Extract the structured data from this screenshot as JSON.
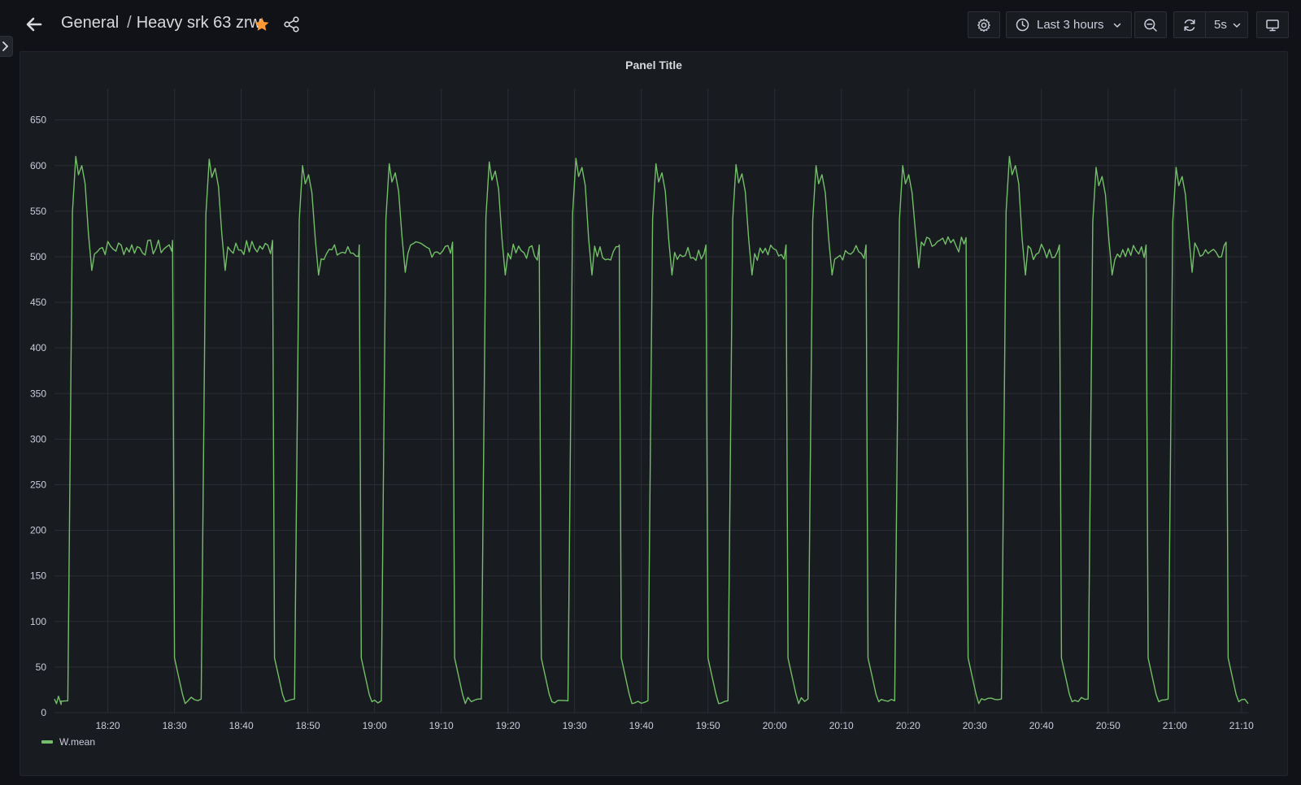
{
  "header": {
    "breadcrumb_folder": "General",
    "breadcrumb_separator": "/",
    "dashboard_title": "Heavy srk 63 zrw",
    "starred": true,
    "icons": [
      "arrow-left-icon",
      "star-icon",
      "share-icon",
      "gear-icon",
      "clock-icon",
      "chevron-down-icon",
      "zoom-out-icon",
      "refresh-icon",
      "monitor-icon",
      "chevron-right-icon"
    ]
  },
  "toolbar": {
    "time_range_label": "Last 3 hours",
    "refresh_interval_label": "5s"
  },
  "colors": {
    "background": "#111217",
    "panel": "#181b1f",
    "series": "#73bf69",
    "star": "#ff9830",
    "grid": "#2b2e34"
  },
  "panel": {
    "title": "Panel Title"
  },
  "chart_data": {
    "type": "line",
    "title": "Panel Title",
    "xlabel": "",
    "ylabel": "",
    "x_range": [
      "18:12",
      "21:11"
    ],
    "ylim": [
      0,
      680
    ],
    "y_ticks": [
      0,
      50,
      100,
      150,
      200,
      250,
      300,
      350,
      400,
      450,
      500,
      550,
      600,
      650
    ],
    "x_ticks": [
      "18:20",
      "18:30",
      "18:40",
      "18:50",
      "19:00",
      "19:10",
      "19:20",
      "19:30",
      "19:40",
      "19:50",
      "20:00",
      "20:10",
      "20:20",
      "20:30",
      "20:40",
      "20:50",
      "21:00",
      "21:10"
    ],
    "grid": true,
    "legend": "bottom-left",
    "series": [
      {
        "name": "W.mean",
        "cycles": [
          {
            "rise": "18:14",
            "peak": 610,
            "settle": 510,
            "fall": "18:30",
            "low": 10
          },
          {
            "rise": "18:34",
            "peak": 607,
            "settle": 510,
            "fall": "18:45",
            "low": 12
          },
          {
            "rise": "18:48",
            "peak": 600,
            "settle": 505,
            "fall": "18:58",
            "low": 12
          },
          {
            "rise": "19:01",
            "peak": 602,
            "settle": 508,
            "fall": "19:12",
            "low": 10
          },
          {
            "rise": "19:16",
            "peak": 604,
            "settle": 505,
            "fall": "19:25",
            "low": 12
          },
          {
            "rise": "19:29",
            "peak": 608,
            "settle": 505,
            "fall": "19:37",
            "low": 10
          },
          {
            "rise": "19:41",
            "peak": 602,
            "settle": 505,
            "fall": "19:50",
            "low": 10
          },
          {
            "rise": "19:53",
            "peak": 601,
            "settle": 505,
            "fall": "20:02",
            "low": 10
          },
          {
            "rise": "20:05",
            "peak": 600,
            "settle": 505,
            "fall": "20:14",
            "low": 12
          },
          {
            "rise": "20:18",
            "peak": 600,
            "settle": 513,
            "fall": "20:29",
            "low": 10
          },
          {
            "rise": "20:34",
            "peak": 610,
            "settle": 505,
            "fall": "20:43",
            "low": 12
          },
          {
            "rise": "20:47",
            "peak": 598,
            "settle": 505,
            "fall": "20:56",
            "low": 12
          },
          {
            "rise": "20:59",
            "peak": 598,
            "settle": 508,
            "fall": "21:08",
            "low": 12
          }
        ]
      }
    ]
  }
}
